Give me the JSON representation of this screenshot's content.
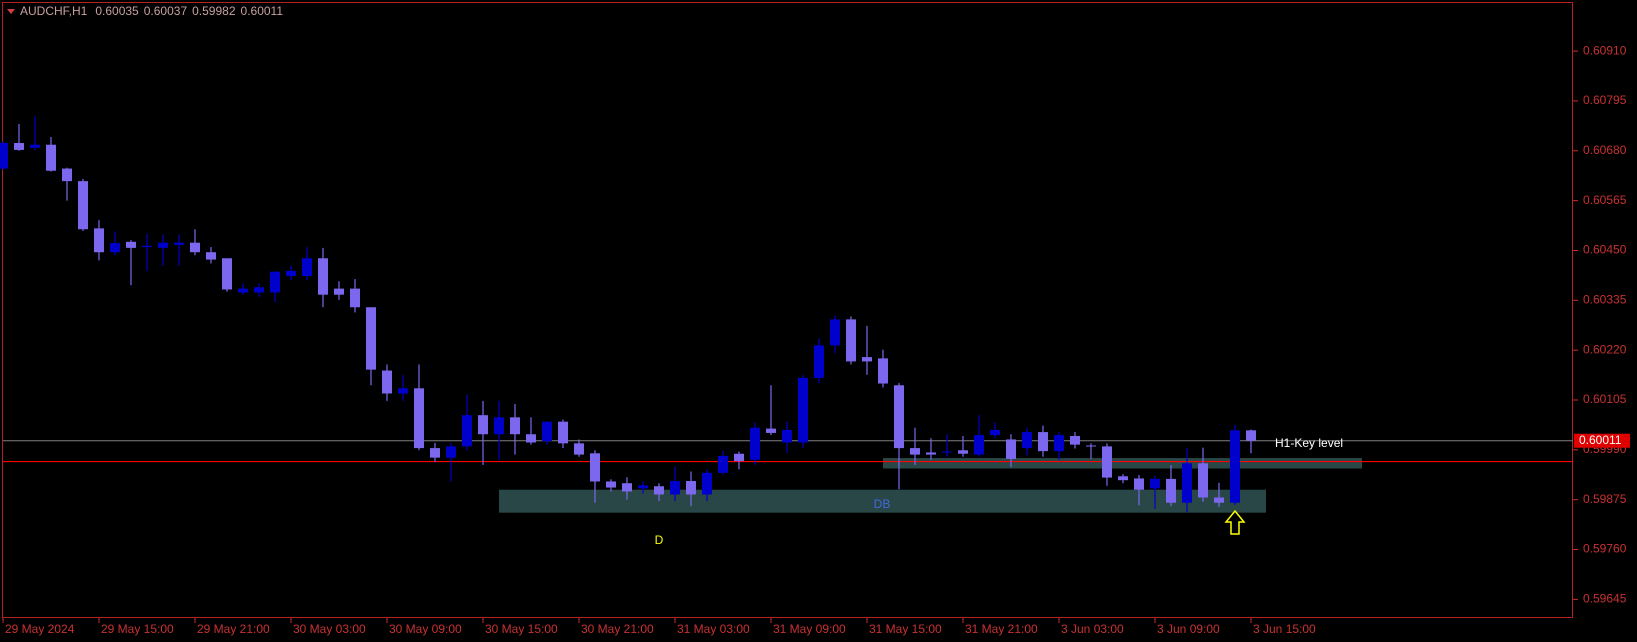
{
  "chart_data": {
    "type": "candlestick",
    "title": "AUDCHF,H1",
    "header_values": [
      0.60035,
      0.60037,
      0.59982,
      0.60011
    ],
    "categories": [
      "29 May 2024",
      null,
      null,
      null,
      null,
      null,
      "29 May 15:00",
      null,
      null,
      null,
      null,
      null,
      "29 May 21:00",
      null,
      null,
      null,
      null,
      null,
      "30 May 03:00",
      null,
      null,
      null,
      null,
      null,
      "30 May 09:00",
      null,
      null,
      null,
      null,
      null,
      "30 May 15:00",
      null,
      null,
      null,
      null,
      null,
      "30 May 21:00",
      null,
      null,
      null,
      null,
      null,
      "31 May 03:00",
      null,
      null,
      null,
      null,
      null,
      "31 May 09:00",
      null,
      null,
      null,
      null,
      null,
      "31 May 15:00",
      null,
      null,
      null,
      null,
      null,
      "31 May 21:00",
      null,
      null,
      null,
      null,
      null,
      "3 Jun 03:00",
      null,
      null,
      null,
      null,
      null,
      "3 Jun 09:00",
      null,
      null,
      null,
      null,
      null,
      "3 Jun 15:00"
    ],
    "open": [
      0.60639,
      0.60698,
      0.60687,
      0.60694,
      0.60639,
      0.6061,
      0.60501,
      0.60446,
      0.6047,
      0.60458,
      0.60456,
      0.60463,
      0.60468,
      0.60446,
      0.60432,
      0.60353,
      0.60353,
      0.60353,
      0.60391,
      0.60391,
      0.60432,
      0.60362,
      0.60362,
      0.60319,
      0.60173,
      0.6012,
      0.60132,
      0.59994,
      0.59972,
      0.59998,
      0.6007,
      0.60026,
      0.60065,
      0.60026,
      0.6001,
      0.60055,
      0.60005,
      0.59982,
      0.59917,
      0.59913,
      0.59901,
      0.59906,
      0.59887,
      0.59918,
      0.59887,
      0.59937,
      0.59981,
      0.59967,
      0.60039,
      0.60007,
      0.60007,
      0.60156,
      0.60231,
      0.60291,
      0.60204,
      0.60201,
      0.60139,
      0.59994,
      0.59984,
      0.59984,
      0.59989,
      0.59979,
      0.60024,
      0.60014,
      0.59994,
      0.60031,
      0.59987,
      0.60022,
      0.6,
      0.59998,
      0.59929,
      0.59924,
      0.59901,
      0.59923,
      0.59868,
      0.59959,
      0.5988,
      0.59868,
      0.60035
    ],
    "high": [
      0.60703,
      0.60742,
      0.6076,
      0.60712,
      0.60641,
      0.60615,
      0.6052,
      0.60494,
      0.60474,
      0.60489,
      0.60487,
      0.60487,
      0.60499,
      0.60458,
      0.60432,
      0.60374,
      0.60374,
      0.60401,
      0.60415,
      0.60458,
      0.60456,
      0.60379,
      0.60384,
      0.60319,
      0.60187,
      0.60163,
      0.60187,
      0.60006,
      0.60006,
      0.60118,
      0.60103,
      0.60103,
      0.60096,
      0.60065,
      0.60055,
      0.6006,
      0.60014,
      0.59989,
      0.59922,
      0.59927,
      0.59917,
      0.59913,
      0.59952,
      0.5994,
      0.59945,
      0.59988,
      0.59986,
      0.60053,
      0.60139,
      0.60055,
      0.60163,
      0.60247,
      0.603,
      0.60298,
      0.60276,
      0.60221,
      0.60144,
      0.60041,
      0.60017,
      0.60026,
      0.60022,
      0.6007,
      0.60053,
      0.60026,
      0.60041,
      0.60046,
      0.60031,
      0.60031,
      0.60005,
      0.60005,
      0.59934,
      0.59932,
      0.5993,
      0.59955,
      0.59995,
      0.59995,
      0.59914,
      0.60048,
      0.60037
    ],
    "low": [
      0.60636,
      0.6068,
      0.60682,
      0.60632,
      0.60565,
      0.60495,
      0.60427,
      0.60439,
      0.6037,
      0.60403,
      0.60415,
      0.60415,
      0.60439,
      0.6042,
      0.60355,
      0.60348,
      0.60343,
      0.60331,
      0.60381,
      0.60381,
      0.60319,
      0.60336,
      0.60307,
      0.60139,
      0.60103,
      0.60103,
      0.59989,
      0.59962,
      0.59917,
      0.59989,
      0.59955,
      0.59967,
      0.59979,
      0.60002,
      0.60002,
      0.59994,
      0.59974,
      0.59868,
      0.59894,
      0.59875,
      0.59889,
      0.59872,
      0.59872,
      0.5986,
      0.59872,
      0.59932,
      0.59945,
      0.59955,
      0.60024,
      0.59983,
      0.59994,
      0.60144,
      0.60213,
      0.60187,
      0.60163,
      0.60134,
      0.59899,
      0.59955,
      0.59967,
      0.59974,
      0.59974,
      0.59974,
      0.60017,
      0.5995,
      0.59977,
      0.59974,
      0.59967,
      0.59993,
      0.59969,
      0.59907,
      0.59913,
      0.59862,
      0.59854,
      0.5986,
      0.59846,
      0.5987,
      0.59858,
      0.59863,
      0.59982
    ],
    "close": [
      0.60698,
      0.60682,
      0.60694,
      0.60634,
      0.6061,
      0.60499,
      0.60446,
      0.60467,
      0.60456,
      0.60461,
      0.60468,
      0.60468,
      0.60446,
      0.60429,
      0.6036,
      0.60362,
      0.60365,
      0.60401,
      0.60403,
      0.60432,
      0.60348,
      0.60348,
      0.60319,
      0.60175,
      0.6012,
      0.60132,
      0.59994,
      0.59972,
      0.59998,
      0.6007,
      0.60026,
      0.60065,
      0.60026,
      0.60007,
      0.60055,
      0.60005,
      0.59979,
      0.59917,
      0.59903,
      0.59894,
      0.59908,
      0.59887,
      0.59918,
      0.59887,
      0.59937,
      0.59976,
      0.59964,
      0.60041,
      0.60029,
      0.60036,
      0.60156,
      0.60231,
      0.60291,
      0.60194,
      0.60194,
      0.60143,
      0.59994,
      0.59979,
      0.59979,
      0.59986,
      0.59981,
      0.60024,
      0.60036,
      0.59969,
      0.60031,
      0.59987,
      0.60024,
      0.60002,
      0.59998,
      0.59926,
      0.5992,
      0.59898,
      0.59923,
      0.59868,
      0.59959,
      0.5988,
      0.59868,
      0.60035,
      0.60011
    ],
    "up_color": "#0000cd",
    "down_color": "#7b68ee",
    "ylim": [
      0.59602,
      0.61021
    ],
    "yticks": [
      {
        "value": 0.6091,
        "label": "0.60910"
      },
      0.60795,
      {
        "value": 0.6068,
        "label": "0.60680"
      },
      0.60565,
      {
        "value": 0.6045,
        "label": "0.60450"
      },
      0.60335,
      {
        "value": 0.6022,
        "label": "0.60220"
      },
      0.60105,
      {
        "value": 0.5999,
        "label": "0.59990"
      },
      0.59875,
      {
        "value": 0.5976,
        "label": "0.59760"
      },
      0.59645
    ],
    "key_level": {
      "value": 0.59963,
      "color": "#ff0000"
    },
    "zones": [
      {
        "top": 0.59898,
        "bottom": 0.59845
      },
      {
        "top": 0.59971,
        "bottom": 0.59947
      }
    ],
    "annotations": [
      {
        "text": "D",
        "color": "#ffff00"
      },
      {
        "text": "DB",
        "color": "#4169e1"
      },
      {
        "text": "H1-Key level",
        "color": "#ffffff"
      }
    ]
  }
}
